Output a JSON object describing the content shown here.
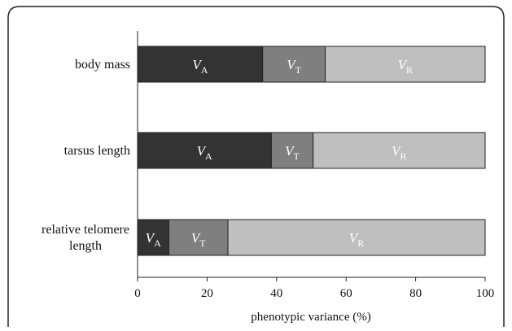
{
  "chart_data": {
    "type": "bar",
    "orientation": "horizontal",
    "stacked": true,
    "categories": [
      [
        "body mass"
      ],
      [
        "tarsus length"
      ],
      [
        "relative telomere",
        "length"
      ]
    ],
    "series": [
      {
        "label_main": "V",
        "label_sub": "A",
        "color": "#333333",
        "text_color": "#ffffff",
        "values": [
          36,
          38.5,
          9
        ]
      },
      {
        "label_main": "V",
        "label_sub": "T",
        "color": "#7f7f7f",
        "text_color": "#ffffff",
        "values": [
          18,
          12,
          17
        ]
      },
      {
        "label_main": "V",
        "label_sub": "R",
        "color": "#bfbfbf",
        "text_color": "#ffffff",
        "values": [
          46,
          49.5,
          74
        ]
      }
    ],
    "x_ticks": [
      "0",
      "20",
      "40",
      "60",
      "80",
      "100"
    ],
    "xlim": [
      0,
      100
    ],
    "xlabel": "phenotypic variance (%)",
    "grid": false
  },
  "colors": {
    "border": "#222222",
    "axis": "#222222",
    "bar_outline": "#222222"
  }
}
